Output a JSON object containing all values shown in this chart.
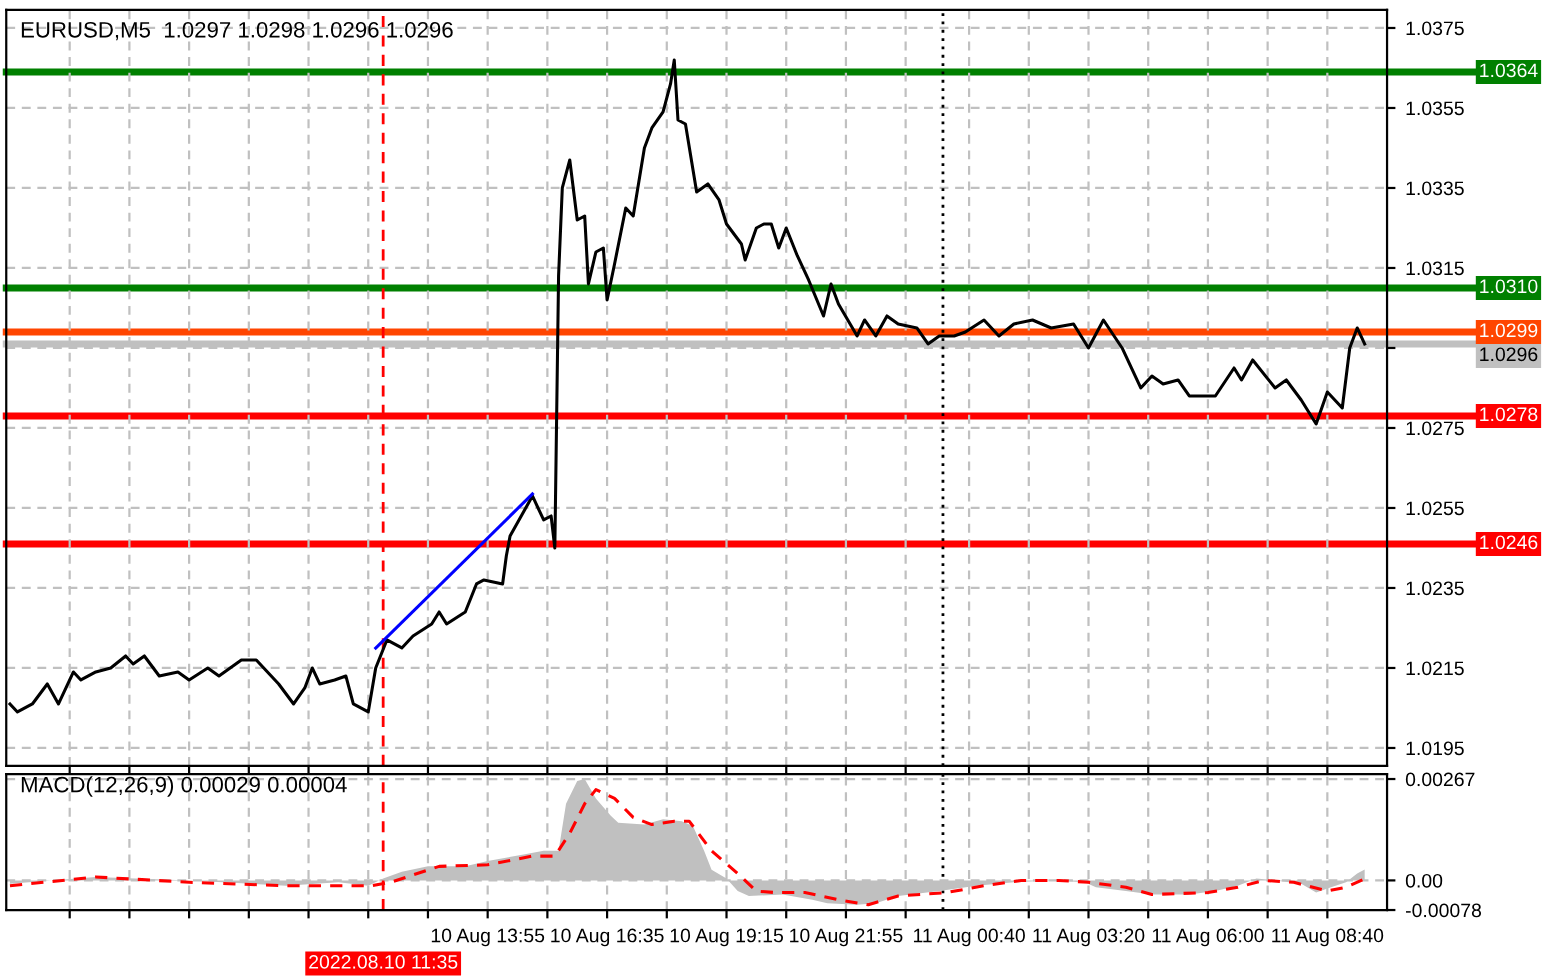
{
  "chart_data": [
    {
      "type": "line",
      "title": "EURUSD,M5  1.0297 1.0298 1.0296 1.0296",
      "xlim": [
        "2022-08-10T03:10",
        "2022-08-11T10:00"
      ],
      "ylim": [
        1.01905,
        1.03795
      ],
      "xticks": [
        {
          "value": "2022-08-10T04:35",
          "label": null
        },
        {
          "value": "2022-08-10T05:55",
          "label": null
        },
        {
          "value": "2022-08-10T07:15",
          "label": null
        },
        {
          "value": "2022-08-10T08:35",
          "label": null
        },
        {
          "value": "2022-08-10T09:55",
          "label": null
        },
        {
          "value": "2022-08-10T11:15",
          "label": null
        },
        {
          "value": "2022-08-10T12:35",
          "label": null
        },
        {
          "value": "2022-08-10T13:55",
          "label": null
        },
        {
          "value": "2022-08-10T15:15",
          "label": null
        },
        {
          "value": "2022-08-10T16:35",
          "label": null
        },
        {
          "value": "2022-08-10T17:55",
          "label": null
        },
        {
          "value": "2022-08-10T19:15",
          "label": null
        },
        {
          "value": "2022-08-10T20:35",
          "label": null
        },
        {
          "value": "2022-08-10T21:55",
          "label": null
        },
        {
          "value": "2022-08-10T23:15",
          "label": null
        },
        {
          "value": "2022-08-11T00:40",
          "label": null
        },
        {
          "value": "2022-08-11T02:00",
          "label": null
        },
        {
          "value": "2022-08-11T03:20",
          "label": null
        },
        {
          "value": "2022-08-11T04:40",
          "label": null
        },
        {
          "value": "2022-08-11T06:00",
          "label": null
        },
        {
          "value": "2022-08-11T07:20",
          "label": null
        },
        {
          "value": "2022-08-11T08:40",
          "label": null
        }
      ],
      "yticks": [
        1.0375,
        1.0355,
        1.0335,
        1.0315,
        {
          "value": 1.0295,
          "label": null
        },
        1.0275,
        1.0255,
        1.0235,
        1.0215,
        1.0195
      ],
      "tick_labels": "y",
      "grid": true,
      "series": [
        {
          "color": "#000000",
          "x": [
            "2022-08-10T03:15",
            "2022-08-10T03:25",
            "2022-08-10T03:45",
            "2022-08-10T04:05",
            "2022-08-10T04:20",
            "2022-08-10T04:40",
            "2022-08-10T04:50",
            "2022-08-10T05:10",
            "2022-08-10T05:30",
            "2022-08-10T05:50",
            "2022-08-10T06:00",
            "2022-08-10T06:15",
            "2022-08-10T06:35",
            "2022-08-10T07:00",
            "2022-08-10T07:15",
            "2022-08-10T07:40",
            "2022-08-10T07:55",
            "2022-08-10T08:25",
            "2022-08-10T08:45",
            "2022-08-10T09:15",
            "2022-08-10T09:35",
            "2022-08-10T09:50",
            "2022-08-10T10:00",
            "2022-08-10T10:10",
            "2022-08-10T10:30",
            "2022-08-10T10:45",
            "2022-08-10T10:55",
            "2022-08-10T11:15",
            "2022-08-10T11:25",
            "2022-08-10T11:40",
            "2022-08-10T12:00",
            "2022-08-10T12:15",
            "2022-08-10T12:40",
            "2022-08-10T12:50",
            "2022-08-10T13:00",
            "2022-08-10T13:25",
            "2022-08-10T13:40",
            "2022-08-10T13:50",
            "2022-08-10T14:15",
            "2022-08-10T14:20",
            "2022-08-10T14:25",
            "2022-08-10T14:55",
            "2022-08-10T15:10",
            "2022-08-10T15:20",
            "2022-08-10T15:25",
            "2022-08-10T15:30",
            "2022-08-10T15:35",
            "2022-08-10T15:45",
            "2022-08-10T15:55",
            "2022-08-10T16:05",
            "2022-08-10T16:10",
            "2022-08-10T16:20",
            "2022-08-10T16:30",
            "2022-08-10T16:35",
            "2022-08-10T16:45",
            "2022-08-10T17:00",
            "2022-08-10T17:10",
            "2022-08-10T17:25",
            "2022-08-10T17:35",
            "2022-08-10T17:50",
            "2022-08-10T18:00",
            "2022-08-10T18:05",
            "2022-08-10T18:10",
            "2022-08-10T18:20",
            "2022-08-10T18:35",
            "2022-08-10T18:50",
            "2022-08-10T19:05",
            "2022-08-10T19:15",
            "2022-08-10T19:35",
            "2022-08-10T19:40",
            "2022-08-10T19:55",
            "2022-08-10T20:05",
            "2022-08-10T20:15",
            "2022-08-10T20:25",
            "2022-08-10T20:35",
            "2022-08-10T20:50",
            "2022-08-10T21:05",
            "2022-08-10T21:25",
            "2022-08-10T21:35",
            "2022-08-10T21:45",
            "2022-08-10T22:10",
            "2022-08-10T22:20",
            "2022-08-10T22:35",
            "2022-08-10T22:50",
            "2022-08-10T23:05",
            "2022-08-10T23:30",
            "2022-08-10T23:45",
            "2022-08-11T00:00",
            "2022-08-11T00:20",
            "2022-08-11T00:35",
            "2022-08-11T01:00",
            "2022-08-11T01:20",
            "2022-08-11T01:40",
            "2022-08-11T02:05",
            "2022-08-11T02:30",
            "2022-08-11T03:00",
            "2022-08-11T03:20",
            "2022-08-11T03:40",
            "2022-08-11T04:05",
            "2022-08-11T04:30",
            "2022-08-11T04:45",
            "2022-08-11T05:00",
            "2022-08-11T05:20",
            "2022-08-11T05:35",
            "2022-08-11T06:10",
            "2022-08-11T06:35",
            "2022-08-11T06:45",
            "2022-08-11T07:00",
            "2022-08-11T07:30",
            "2022-08-11T07:45",
            "2022-08-11T08:05",
            "2022-08-11T08:25",
            "2022-08-11T08:40",
            "2022-08-11T09:00",
            "2022-08-11T09:10",
            "2022-08-11T09:20",
            "2022-08-11T09:30"
          ],
          "values": [
            1.0206,
            1.0204,
            1.0206,
            1.0211,
            1.0206,
            1.0214,
            1.0212,
            1.0214,
            1.0215,
            1.0218,
            1.0216,
            1.0218,
            1.0213,
            1.0214,
            1.0212,
            1.0215,
            1.0213,
            1.0217,
            1.0217,
            1.0211,
            1.0206,
            1.021,
            1.0215,
            1.0211,
            1.0212,
            1.0213,
            1.0206,
            1.0204,
            1.0215,
            1.0222,
            1.022,
            1.0223,
            1.0226,
            1.0229,
            1.0226,
            1.0229,
            1.0236,
            1.0237,
            1.0236,
            1.0243,
            1.0248,
            1.0258,
            1.0252,
            1.0253,
            1.0245,
            1.0313,
            1.0335,
            1.0342,
            1.0327,
            1.0328,
            1.0311,
            1.0319,
            1.032,
            1.0307,
            1.0316,
            1.033,
            1.0328,
            1.0345,
            1.035,
            1.0354,
            1.0361,
            1.0367,
            1.0352,
            1.0351,
            1.0334,
            1.0336,
            1.0332,
            1.0326,
            1.0321,
            1.0317,
            1.0325,
            1.0326,
            1.0326,
            1.032,
            1.0325,
            1.0318,
            1.0312,
            1.0303,
            1.0311,
            1.0306,
            1.0298,
            1.0302,
            1.0298,
            1.0303,
            1.0301,
            1.03,
            1.0296,
            1.0298,
            1.0298,
            1.0299,
            1.0302,
            1.0298,
            1.0301,
            1.0302,
            1.03,
            1.0301,
            1.0295,
            1.0302,
            1.0295,
            1.0285,
            1.0288,
            1.0286,
            1.0287,
            1.0283,
            1.0283,
            1.029,
            1.0287,
            1.0292,
            1.0285,
            1.0287,
            1.0282,
            1.0276,
            1.0284,
            1.028,
            1.0295,
            1.03,
            1.0296
          ]
        },
        {
          "color": "#0000ff",
          "x": [
            "2022-08-10T11:25",
            "2022-08-10T14:55"
          ],
          "values": [
            1.022,
            1.02585
          ]
        }
      ],
      "ref_lines": [
        {
          "axis": "y",
          "value": 1.0364,
          "label": "1.0364",
          "color": "#008000"
        },
        {
          "axis": "y",
          "value": 1.031,
          "label": "1.0310",
          "color": "#008000"
        },
        {
          "axis": "y",
          "value": 1.0299,
          "label": "1.0299",
          "color": "#ff4500"
        },
        {
          "axis": "y",
          "value": 1.0296,
          "label": "1.0296",
          "color": "#c0c0c0"
        },
        {
          "axis": "y",
          "value": 1.0278,
          "label": "1.0278",
          "color": "#ff0000"
        },
        {
          "axis": "y",
          "value": 1.0246,
          "label": "1.0246",
          "color": "#ff0000"
        },
        {
          "axis": "x",
          "value": "2022-08-10T11:35",
          "color": "#ff0000",
          "line_style": "dashed"
        },
        {
          "axis": "x",
          "value": "2022-08-11T00:05",
          "color": "#000000",
          "line_style": "dotted"
        }
      ]
    },
    {
      "type": "area",
      "title": "MACD(12,26,9) 0.00029 0.00004",
      "xlim": [
        "2022-08-10T03:10",
        "2022-08-11T10:00"
      ],
      "ylim": [
        -0.00078,
        0.0028
      ],
      "xticks": [
        {
          "value": "2022-08-10T04:35",
          "label": null
        },
        {
          "value": "2022-08-10T05:55",
          "label": null
        },
        {
          "value": "2022-08-10T07:15",
          "label": null
        },
        {
          "value": "2022-08-10T08:35",
          "label": null
        },
        {
          "value": "2022-08-10T09:55",
          "label": null
        },
        {
          "value": "2022-08-10T11:15",
          "label": null
        },
        {
          "value": "2022-08-10T12:35",
          "label": null
        },
        {
          "value": "2022-08-10T13:55",
          "label": "10 Aug 13:55"
        },
        {
          "value": "2022-08-10T15:15",
          "label": null
        },
        {
          "value": "2022-08-10T16:35",
          "label": "10 Aug 16:35"
        },
        {
          "value": "2022-08-10T17:55",
          "label": null
        },
        {
          "value": "2022-08-10T19:15",
          "label": "10 Aug 19:15"
        },
        {
          "value": "2022-08-10T20:35",
          "label": null
        },
        {
          "value": "2022-08-10T21:55",
          "label": "10 Aug 21:55"
        },
        {
          "value": "2022-08-10T23:15",
          "label": null
        },
        {
          "value": "2022-08-11T00:40",
          "label": "11 Aug 00:40"
        },
        {
          "value": "2022-08-11T02:00",
          "label": null
        },
        {
          "value": "2022-08-11T03:20",
          "label": "11 Aug 03:20"
        },
        {
          "value": "2022-08-11T04:40",
          "label": null
        },
        {
          "value": "2022-08-11T06:00",
          "label": "11 Aug 06:00"
        },
        {
          "value": "2022-08-11T07:20",
          "label": null
        },
        {
          "value": "2022-08-11T08:40",
          "label": "11 Aug 08:40"
        }
      ],
      "yticks": [
        {
          "value": 0.00267,
          "label": "0.00267"
        },
        {
          "value": 0,
          "label": "0.00"
        },
        {
          "value": -0.00078,
          "label": "-0.00078"
        }
      ],
      "grid": true,
      "series": [
        {
          "color": "#c0c0c0",
          "x": [
            "2022-08-10T03:15",
            "2022-08-10T05:10",
            "2022-08-10T07:15",
            "2022-08-10T09:25",
            "2022-08-10T10:35",
            "2022-08-10T11:15",
            "2022-08-10T11:35",
            "2022-08-10T12:00",
            "2022-08-10T12:35",
            "2022-08-10T13:25",
            "2022-08-10T13:55",
            "2022-08-10T14:45",
            "2022-08-10T15:10",
            "2022-08-10T15:30",
            "2022-08-10T15:40",
            "2022-08-10T15:55",
            "2022-08-10T16:05",
            "2022-08-10T16:20",
            "2022-08-10T16:40",
            "2022-08-10T16:50",
            "2022-08-10T17:25",
            "2022-08-10T17:50",
            "2022-08-10T18:15",
            "2022-08-10T18:30",
            "2022-08-10T18:45",
            "2022-08-10T18:55",
            "2022-08-10T19:15",
            "2022-08-10T19:30",
            "2022-08-10T19:45",
            "2022-08-10T20:30",
            "2022-08-10T21:10",
            "2022-08-10T21:30",
            "2022-08-10T22:10",
            "2022-08-10T22:35",
            "2022-08-10T23:05",
            "2022-08-11T00:00",
            "2022-08-11T00:50",
            "2022-08-11T01:40",
            "2022-08-11T02:30",
            "2022-08-11T03:15",
            "2022-08-11T03:30",
            "2022-08-11T04:10",
            "2022-08-11T04:45",
            "2022-08-11T05:35",
            "2022-08-11T06:10",
            "2022-08-11T06:40",
            "2022-08-11T07:05",
            "2022-08-11T07:30",
            "2022-08-11T08:05",
            "2022-08-11T08:25",
            "2022-08-11T08:45",
            "2022-08-11T09:05",
            "2022-08-11T09:20",
            "2022-08-11T09:30"
          ],
          "values": [
            -9e-05,
            9e-05,
            0,
            -0.00014,
            -5e-05,
            -0.00014,
            5e-05,
            0.00023,
            0.00037,
            0.00037,
            0.00051,
            0.00069,
            0.00078,
            0.00078,
            0.00202,
            0.00262,
            0.00267,
            0.00216,
            0.0017,
            0.00152,
            0.00147,
            0.00161,
            0.00156,
            0.00143,
            0.00078,
            0.00028,
            5e-05,
            -0.00028,
            -0.00041,
            -0.00037,
            -0.00051,
            -0.0006,
            -0.00064,
            -0.0006,
            -0.00041,
            -0.00028,
            -0.00014,
            -5e-05,
            0,
            -5e-05,
            -0.00018,
            -0.00028,
            -0.00037,
            -0.00037,
            -0.00028,
            -0.00014,
            5e-05,
            0,
            -9e-05,
            -0.00032,
            -0.00018,
            -5e-05,
            0.00018,
            0.00029
          ]
        },
        {
          "type": "line",
          "color": "#ff0000",
          "line_style": "dashed",
          "x": [
            "2022-08-10T03:15",
            "2022-08-10T05:10",
            "2022-08-10T07:15",
            "2022-08-10T09:25",
            "2022-08-10T11:20",
            "2022-08-10T11:45",
            "2022-08-10T12:50",
            "2022-08-10T13:55",
            "2022-08-10T14:55",
            "2022-08-10T15:25",
            "2022-08-10T15:45",
            "2022-08-10T16:05",
            "2022-08-10T16:20",
            "2022-08-10T16:45",
            "2022-08-10T17:10",
            "2022-08-10T17:35",
            "2022-08-10T18:05",
            "2022-08-10T18:25",
            "2022-08-10T18:55",
            "2022-08-10T19:30",
            "2022-08-10T19:55",
            "2022-08-10T20:20",
            "2022-08-10T21:00",
            "2022-08-10T21:45",
            "2022-08-10T22:25",
            "2022-08-10T23:05",
            "2022-08-11T00:10",
            "2022-08-11T01:00",
            "2022-08-11T01:50",
            "2022-08-11T02:40",
            "2022-08-11T03:20",
            "2022-08-11T04:10",
            "2022-08-11T04:45",
            "2022-08-11T06:00",
            "2022-08-11T06:40",
            "2022-08-11T07:15",
            "2022-08-11T07:55",
            "2022-08-11T08:40",
            "2022-08-11T09:05",
            "2022-08-11T09:30"
          ],
          "values": [
            -0.00014,
            9e-05,
            -5e-05,
            -0.00014,
            -0.00014,
            -5e-05,
            0.00037,
            0.00041,
            0.00064,
            0.00064,
            0.00124,
            0.00202,
            0.00239,
            0.00216,
            0.00166,
            0.00147,
            0.00156,
            0.00156,
            0.00078,
            0.00018,
            -0.00028,
            -0.00032,
            -0.00032,
            -0.00051,
            -0.00064,
            -0.00041,
            -0.00032,
            -0.00014,
            0,
            0,
            -5e-05,
            -0.00018,
            -0.00037,
            -0.00032,
            -0.00018,
            0,
            -5e-05,
            -0.00028,
            -0.00018,
            4e-05
          ]
        }
      ],
      "ref_lines": [
        {
          "axis": "x",
          "value": "2022-08-10T11:35",
          "label": "2022.08.10 11:35",
          "color": "#ff0000",
          "line_style": "dashed"
        },
        {
          "axis": "x",
          "value": "2022-08-11T00:05",
          "color": "#000000",
          "line_style": "dotted"
        }
      ]
    }
  ]
}
